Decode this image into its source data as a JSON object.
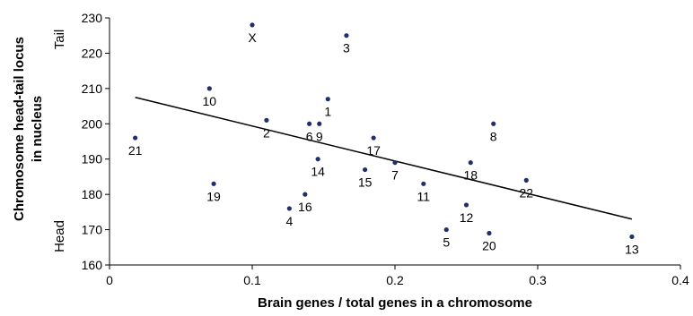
{
  "chart_data": {
    "type": "scatter",
    "title": "",
    "xlabel": "Brain genes / total genes in a chromosome",
    "ylabel_lines": [
      "Chromosome head-tail locus",
      "in nucleus"
    ],
    "ylabel_head": "Head",
    "ylabel_tail": "Tail",
    "xlim": [
      0,
      0.4
    ],
    "ylim": [
      160,
      230
    ],
    "x_ticks": [
      0,
      0.1,
      0.2,
      0.3,
      0.4
    ],
    "x_tick_labels": [
      "0",
      "0.1",
      "0.2",
      "0.3",
      "0.4"
    ],
    "y_ticks": [
      160,
      170,
      180,
      190,
      200,
      210,
      220,
      230
    ],
    "y_tick_labels": [
      "160",
      "170",
      "180",
      "190",
      "200",
      "210",
      "220",
      "230"
    ],
    "grid": false,
    "legend": "none",
    "marker_color": "#1f2f6b",
    "trendline": {
      "x": [
        0.018,
        0.366
      ],
      "y": [
        207.5,
        173
      ]
    },
    "points": [
      {
        "label": "X",
        "x": 0.1,
        "y": 228
      },
      {
        "label": "3",
        "x": 0.166,
        "y": 225
      },
      {
        "label": "10",
        "x": 0.07,
        "y": 210
      },
      {
        "label": "2",
        "x": 0.11,
        "y": 201
      },
      {
        "label": "1",
        "x": 0.153,
        "y": 207
      },
      {
        "label": "6",
        "x": 0.14,
        "y": 200
      },
      {
        "label": "9",
        "x": 0.147,
        "y": 200
      },
      {
        "label": "8",
        "x": 0.269,
        "y": 200
      },
      {
        "label": "21",
        "x": 0.018,
        "y": 196
      },
      {
        "label": "17",
        "x": 0.185,
        "y": 196
      },
      {
        "label": "7",
        "x": 0.2,
        "y": 189
      },
      {
        "label": "14",
        "x": 0.146,
        "y": 190
      },
      {
        "label": "15",
        "x": 0.179,
        "y": 187
      },
      {
        "label": "18",
        "x": 0.253,
        "y": 189
      },
      {
        "label": "22",
        "x": 0.292,
        "y": 184
      },
      {
        "label": "19",
        "x": 0.073,
        "y": 183
      },
      {
        "label": "11",
        "x": 0.22,
        "y": 183
      },
      {
        "label": "16",
        "x": 0.137,
        "y": 180
      },
      {
        "label": "12",
        "x": 0.25,
        "y": 177
      },
      {
        "label": "4",
        "x": 0.126,
        "y": 176
      },
      {
        "label": "5",
        "x": 0.236,
        "y": 170
      },
      {
        "label": "20",
        "x": 0.266,
        "y": 169
      },
      {
        "label": "13",
        "x": 0.366,
        "y": 168
      }
    ]
  }
}
